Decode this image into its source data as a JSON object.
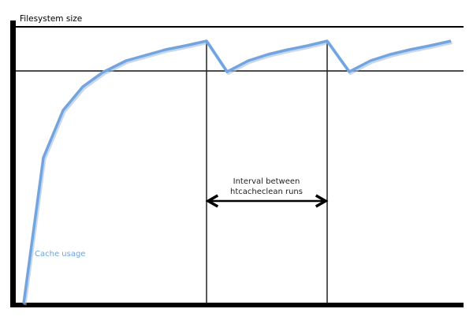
{
  "diagram": {
    "y_axis_label": "Filesystem size",
    "series_label": "Cache usage",
    "interval_label_line1": "Interval between",
    "interval_label_line2": "htcacheclean runs",
    "colors": {
      "cache_line": "#6aa6ee",
      "axes": "#000000"
    }
  }
}
